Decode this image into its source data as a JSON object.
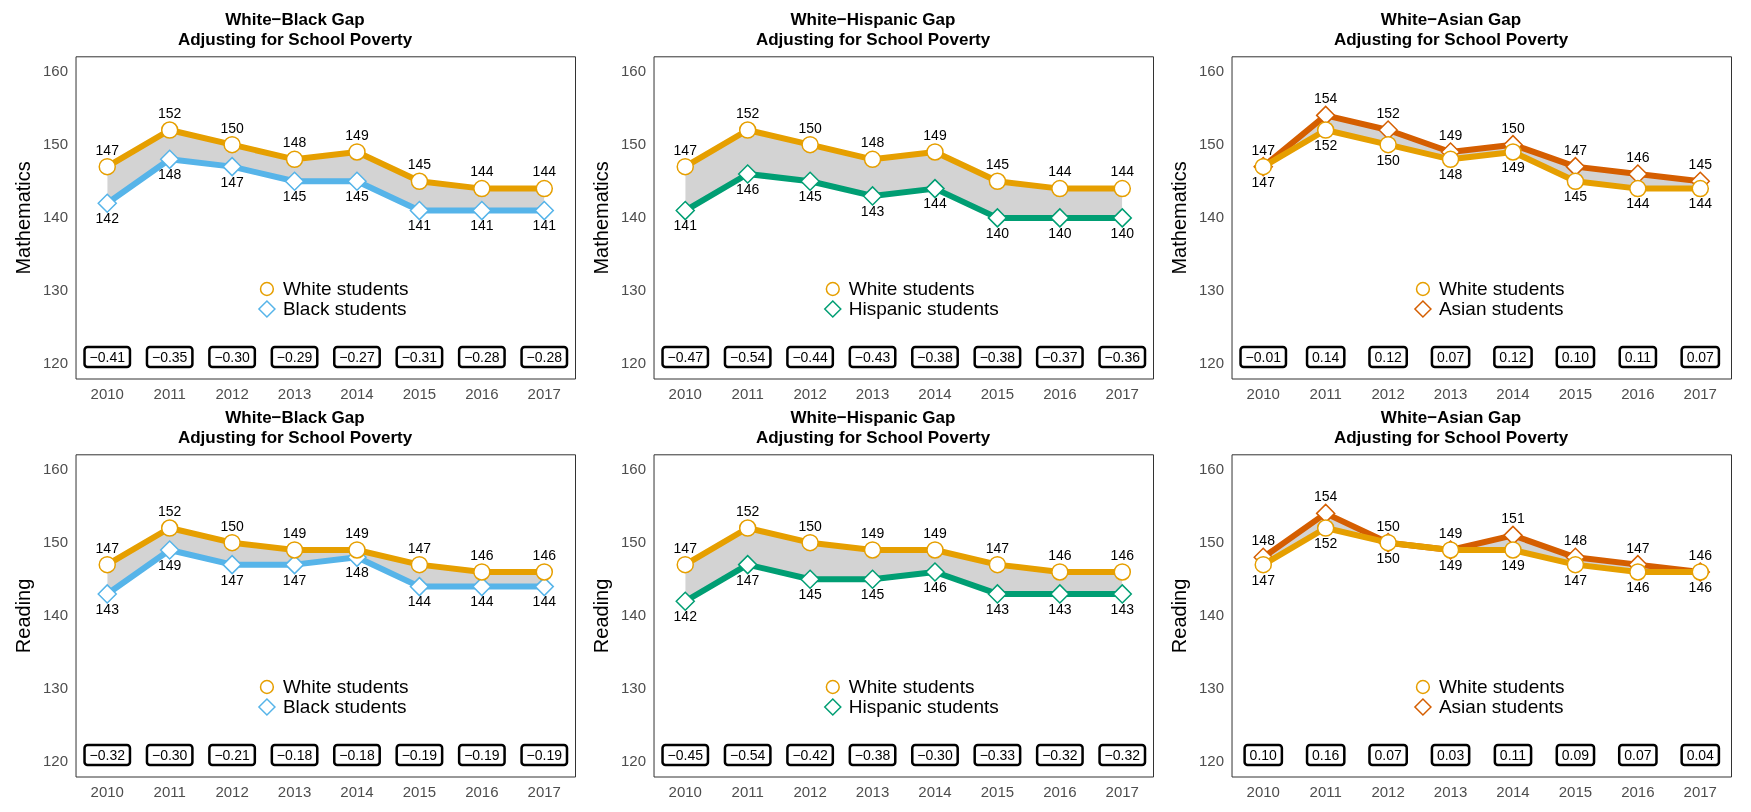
{
  "chart_data": [
    {
      "type": "line",
      "title": "White−Black Gap",
      "subtitle": "Adjusting for School Poverty",
      "ylabel": "Mathematics",
      "categories": [
        "2010",
        "2011",
        "2012",
        "2013",
        "2014",
        "2015",
        "2016",
        "2017"
      ],
      "ylim": [
        118,
        162
      ],
      "yticks": [
        120,
        130,
        140,
        150,
        160
      ],
      "data_labels": true,
      "legend": "bottom",
      "series": [
        {
          "name": "White students",
          "color": "#e69f00",
          "marker": "circle",
          "values": [
            147,
            152,
            150,
            148,
            149,
            145,
            144,
            144
          ]
        },
        {
          "name": "Black students",
          "color": "#56b4e9",
          "marker": "diamond",
          "values": [
            142,
            148,
            147,
            145,
            145,
            141,
            141,
            141
          ]
        }
      ],
      "annotations": [
        "−0.41",
        "−0.35",
        "−0.30",
        "−0.29",
        "−0.27",
        "−0.31",
        "−0.28",
        "−0.28"
      ]
    },
    {
      "type": "line",
      "title": "White−Hispanic Gap",
      "subtitle": "Adjusting for School Poverty",
      "ylabel": "Mathematics",
      "categories": [
        "2010",
        "2011",
        "2012",
        "2013",
        "2014",
        "2015",
        "2016",
        "2017"
      ],
      "ylim": [
        118,
        162
      ],
      "yticks": [
        120,
        130,
        140,
        150,
        160
      ],
      "data_labels": true,
      "legend": "bottom",
      "series": [
        {
          "name": "White students",
          "color": "#e69f00",
          "marker": "circle",
          "values": [
            147,
            152,
            150,
            148,
            149,
            145,
            144,
            144
          ]
        },
        {
          "name": "Hispanic students",
          "color": "#009e73",
          "marker": "diamond",
          "values": [
            141,
            146,
            145,
            143,
            144,
            140,
            140,
            140
          ]
        }
      ],
      "annotations": [
        "−0.47",
        "−0.54",
        "−0.44",
        "−0.43",
        "−0.38",
        "−0.38",
        "−0.37",
        "−0.36"
      ]
    },
    {
      "type": "line",
      "title": "White−Asian Gap",
      "subtitle": "Adjusting for School Poverty",
      "ylabel": "Mathematics",
      "categories": [
        "2010",
        "2011",
        "2012",
        "2013",
        "2014",
        "2015",
        "2016",
        "2017"
      ],
      "ylim": [
        118,
        162
      ],
      "yticks": [
        120,
        130,
        140,
        150,
        160
      ],
      "data_labels": true,
      "legend": "bottom",
      "series": [
        {
          "name": "White students",
          "color": "#e69f00",
          "marker": "circle",
          "values": [
            147,
            152,
            150,
            148,
            149,
            145,
            144,
            144
          ]
        },
        {
          "name": "Asian students",
          "color": "#d55e00",
          "marker": "diamond",
          "values": [
            147,
            154,
            152,
            149,
            150,
            147,
            146,
            145
          ]
        }
      ],
      "annotations": [
        "−0.01",
        "0.14",
        "0.12",
        "0.07",
        "0.12",
        "0.10",
        "0.11",
        "0.07"
      ]
    },
    {
      "type": "line",
      "title": "White−Black Gap",
      "subtitle": "Adjusting for School Poverty",
      "ylabel": "Reading",
      "categories": [
        "2010",
        "2011",
        "2012",
        "2013",
        "2014",
        "2015",
        "2016",
        "2017"
      ],
      "ylim": [
        118,
        162
      ],
      "yticks": [
        120,
        130,
        140,
        150,
        160
      ],
      "data_labels": true,
      "legend": "bottom",
      "series": [
        {
          "name": "White students",
          "color": "#e69f00",
          "marker": "circle",
          "values": [
            147,
            152,
            150,
            149,
            149,
            147,
            146,
            146
          ]
        },
        {
          "name": "Black students",
          "color": "#56b4e9",
          "marker": "diamond",
          "values": [
            143,
            149,
            147,
            147,
            148,
            144,
            144,
            144
          ]
        }
      ],
      "annotations": [
        "−0.32",
        "−0.30",
        "−0.21",
        "−0.18",
        "−0.18",
        "−0.19",
        "−0.19",
        "−0.19"
      ]
    },
    {
      "type": "line",
      "title": "White−Hispanic Gap",
      "subtitle": "Adjusting for School Poverty",
      "ylabel": "Reading",
      "categories": [
        "2010",
        "2011",
        "2012",
        "2013",
        "2014",
        "2015",
        "2016",
        "2017"
      ],
      "ylim": [
        118,
        162
      ],
      "yticks": [
        120,
        130,
        140,
        150,
        160
      ],
      "data_labels": true,
      "legend": "bottom",
      "series": [
        {
          "name": "White students",
          "color": "#e69f00",
          "marker": "circle",
          "values": [
            147,
            152,
            150,
            149,
            149,
            147,
            146,
            146
          ]
        },
        {
          "name": "Hispanic students",
          "color": "#009e73",
          "marker": "diamond",
          "values": [
            142,
            147,
            145,
            145,
            146,
            143,
            143,
            143
          ]
        }
      ],
      "annotations": [
        "−0.45",
        "−0.54",
        "−0.42",
        "−0.38",
        "−0.30",
        "−0.33",
        "−0.32",
        "−0.32"
      ]
    },
    {
      "type": "line",
      "title": "White−Asian Gap",
      "subtitle": "Adjusting for School Poverty",
      "ylabel": "Reading",
      "categories": [
        "2010",
        "2011",
        "2012",
        "2013",
        "2014",
        "2015",
        "2016",
        "2017"
      ],
      "ylim": [
        118,
        162
      ],
      "yticks": [
        120,
        130,
        140,
        150,
        160
      ],
      "data_labels": true,
      "legend": "bottom",
      "series": [
        {
          "name": "White students",
          "color": "#e69f00",
          "marker": "circle",
          "values": [
            147,
            152,
            150,
            149,
            149,
            147,
            146,
            146
          ]
        },
        {
          "name": "Asian students",
          "color": "#d55e00",
          "marker": "diamond",
          "values": [
            148,
            154,
            150,
            149,
            151,
            148,
            147,
            146
          ]
        }
      ],
      "annotations": [
        "0.10",
        "0.16",
        "0.07",
        "0.03",
        "0.11",
        "0.09",
        "0.07",
        "0.04"
      ]
    }
  ]
}
